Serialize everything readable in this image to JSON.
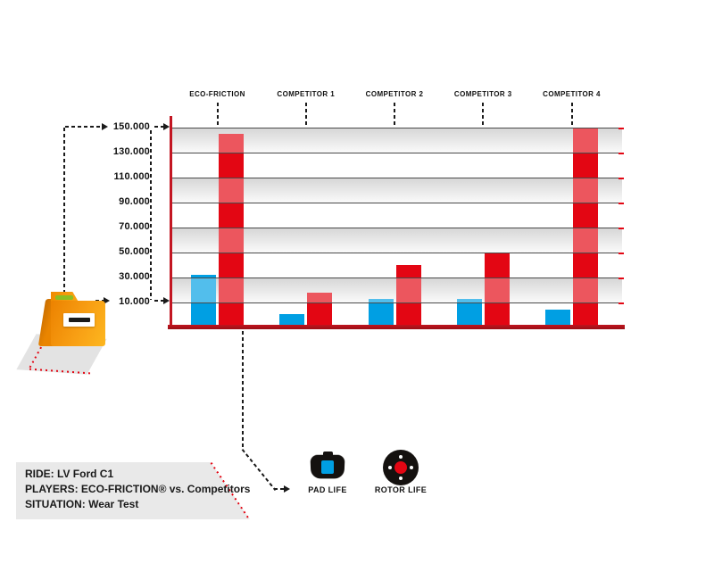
{
  "chart_data": {
    "type": "bar",
    "title": "",
    "categories": [
      "ECO-FRICTION",
      "COMPETITOR 1",
      "COMPETITOR 2",
      "COMPETITOR 3",
      "COMPETITOR 4"
    ],
    "series": [
      {
        "name": "PAD LIFE",
        "color": "#009fe3",
        "values": [
          32000,
          5000,
          13000,
          13000,
          7000
        ]
      },
      {
        "name": "ROTOR LIFE",
        "color": "#e30613",
        "values": [
          145000,
          18000,
          40000,
          50000,
          150000
        ]
      }
    ],
    "y_ticks": [
      "150.000",
      "130.000",
      "110.000",
      "90.000",
      "70.000",
      "50.000",
      "30.000",
      "10.000"
    ],
    "y_tick_values": [
      150000,
      130000,
      110000,
      90000,
      70000,
      50000,
      30000,
      10000
    ],
    "ylim": [
      0,
      160000
    ],
    "grid": "horizontal-alternating-bands",
    "legend_position": "bottom"
  },
  "legend": {
    "pad_label": "PAD LIFE",
    "rotor_label": "ROTOR LIFE"
  },
  "info_box": {
    "line1": "RIDE: LV Ford C1",
    "line2": "PLAYERS: ECO-FRICTION® vs. Competitors",
    "line3": "SITUATION: Wear Test"
  },
  "icons": {
    "folder": "folder-icon",
    "pad": "brake-pad-icon",
    "rotor": "brake-rotor-icon"
  },
  "colors": {
    "pad_blue": "#009fe3",
    "rotor_red": "#e30613",
    "axis_red": "#c31622",
    "baseline_red": "#9a1016",
    "band_gray": "#d8d8d8",
    "box_gray": "#e9e9e9",
    "dashed_black": "#1a1a1a",
    "folder_orange": "#f89f14",
    "folder_green": "#8cbe22"
  }
}
